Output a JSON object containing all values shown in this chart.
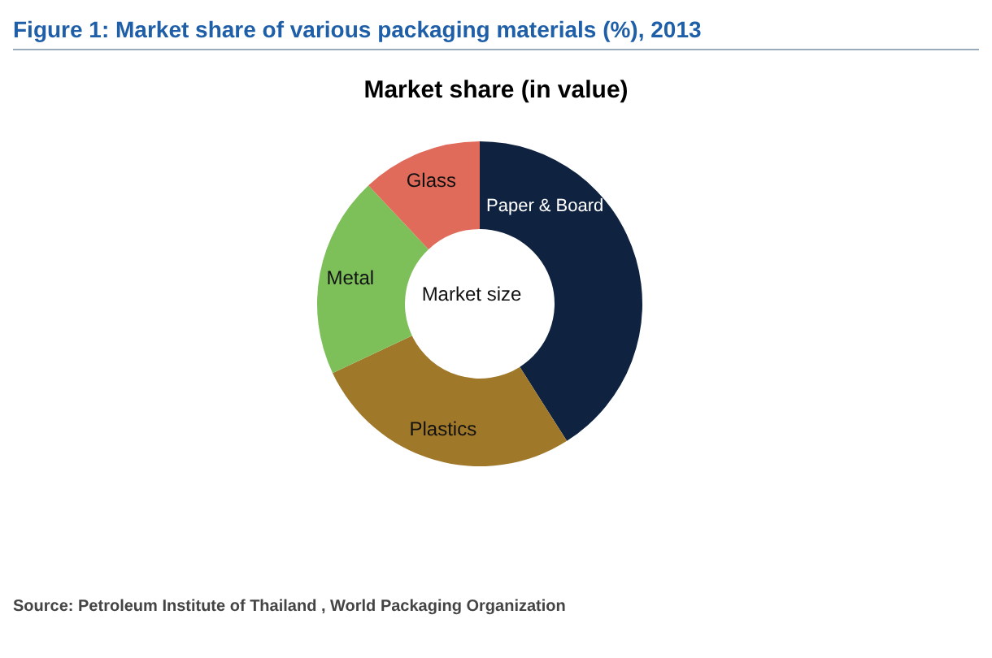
{
  "chart_data": {
    "type": "donut",
    "title": "Figure 1: Market share of various packaging materials (%), 2013",
    "subtitle": "Market share (in value)",
    "categories": [
      "Paper & Board",
      "Plastics",
      "Metal",
      "Glass"
    ],
    "values": [
      41,
      27,
      20,
      12
    ],
    "colors": [
      "#0f2341",
      "#a0782a",
      "#7dc05a",
      "#e06b5a"
    ],
    "annotations": [
      "Market size",
      "Source: Petroleum Institute of Thailand , World Packaging Organization"
    ]
  }
}
